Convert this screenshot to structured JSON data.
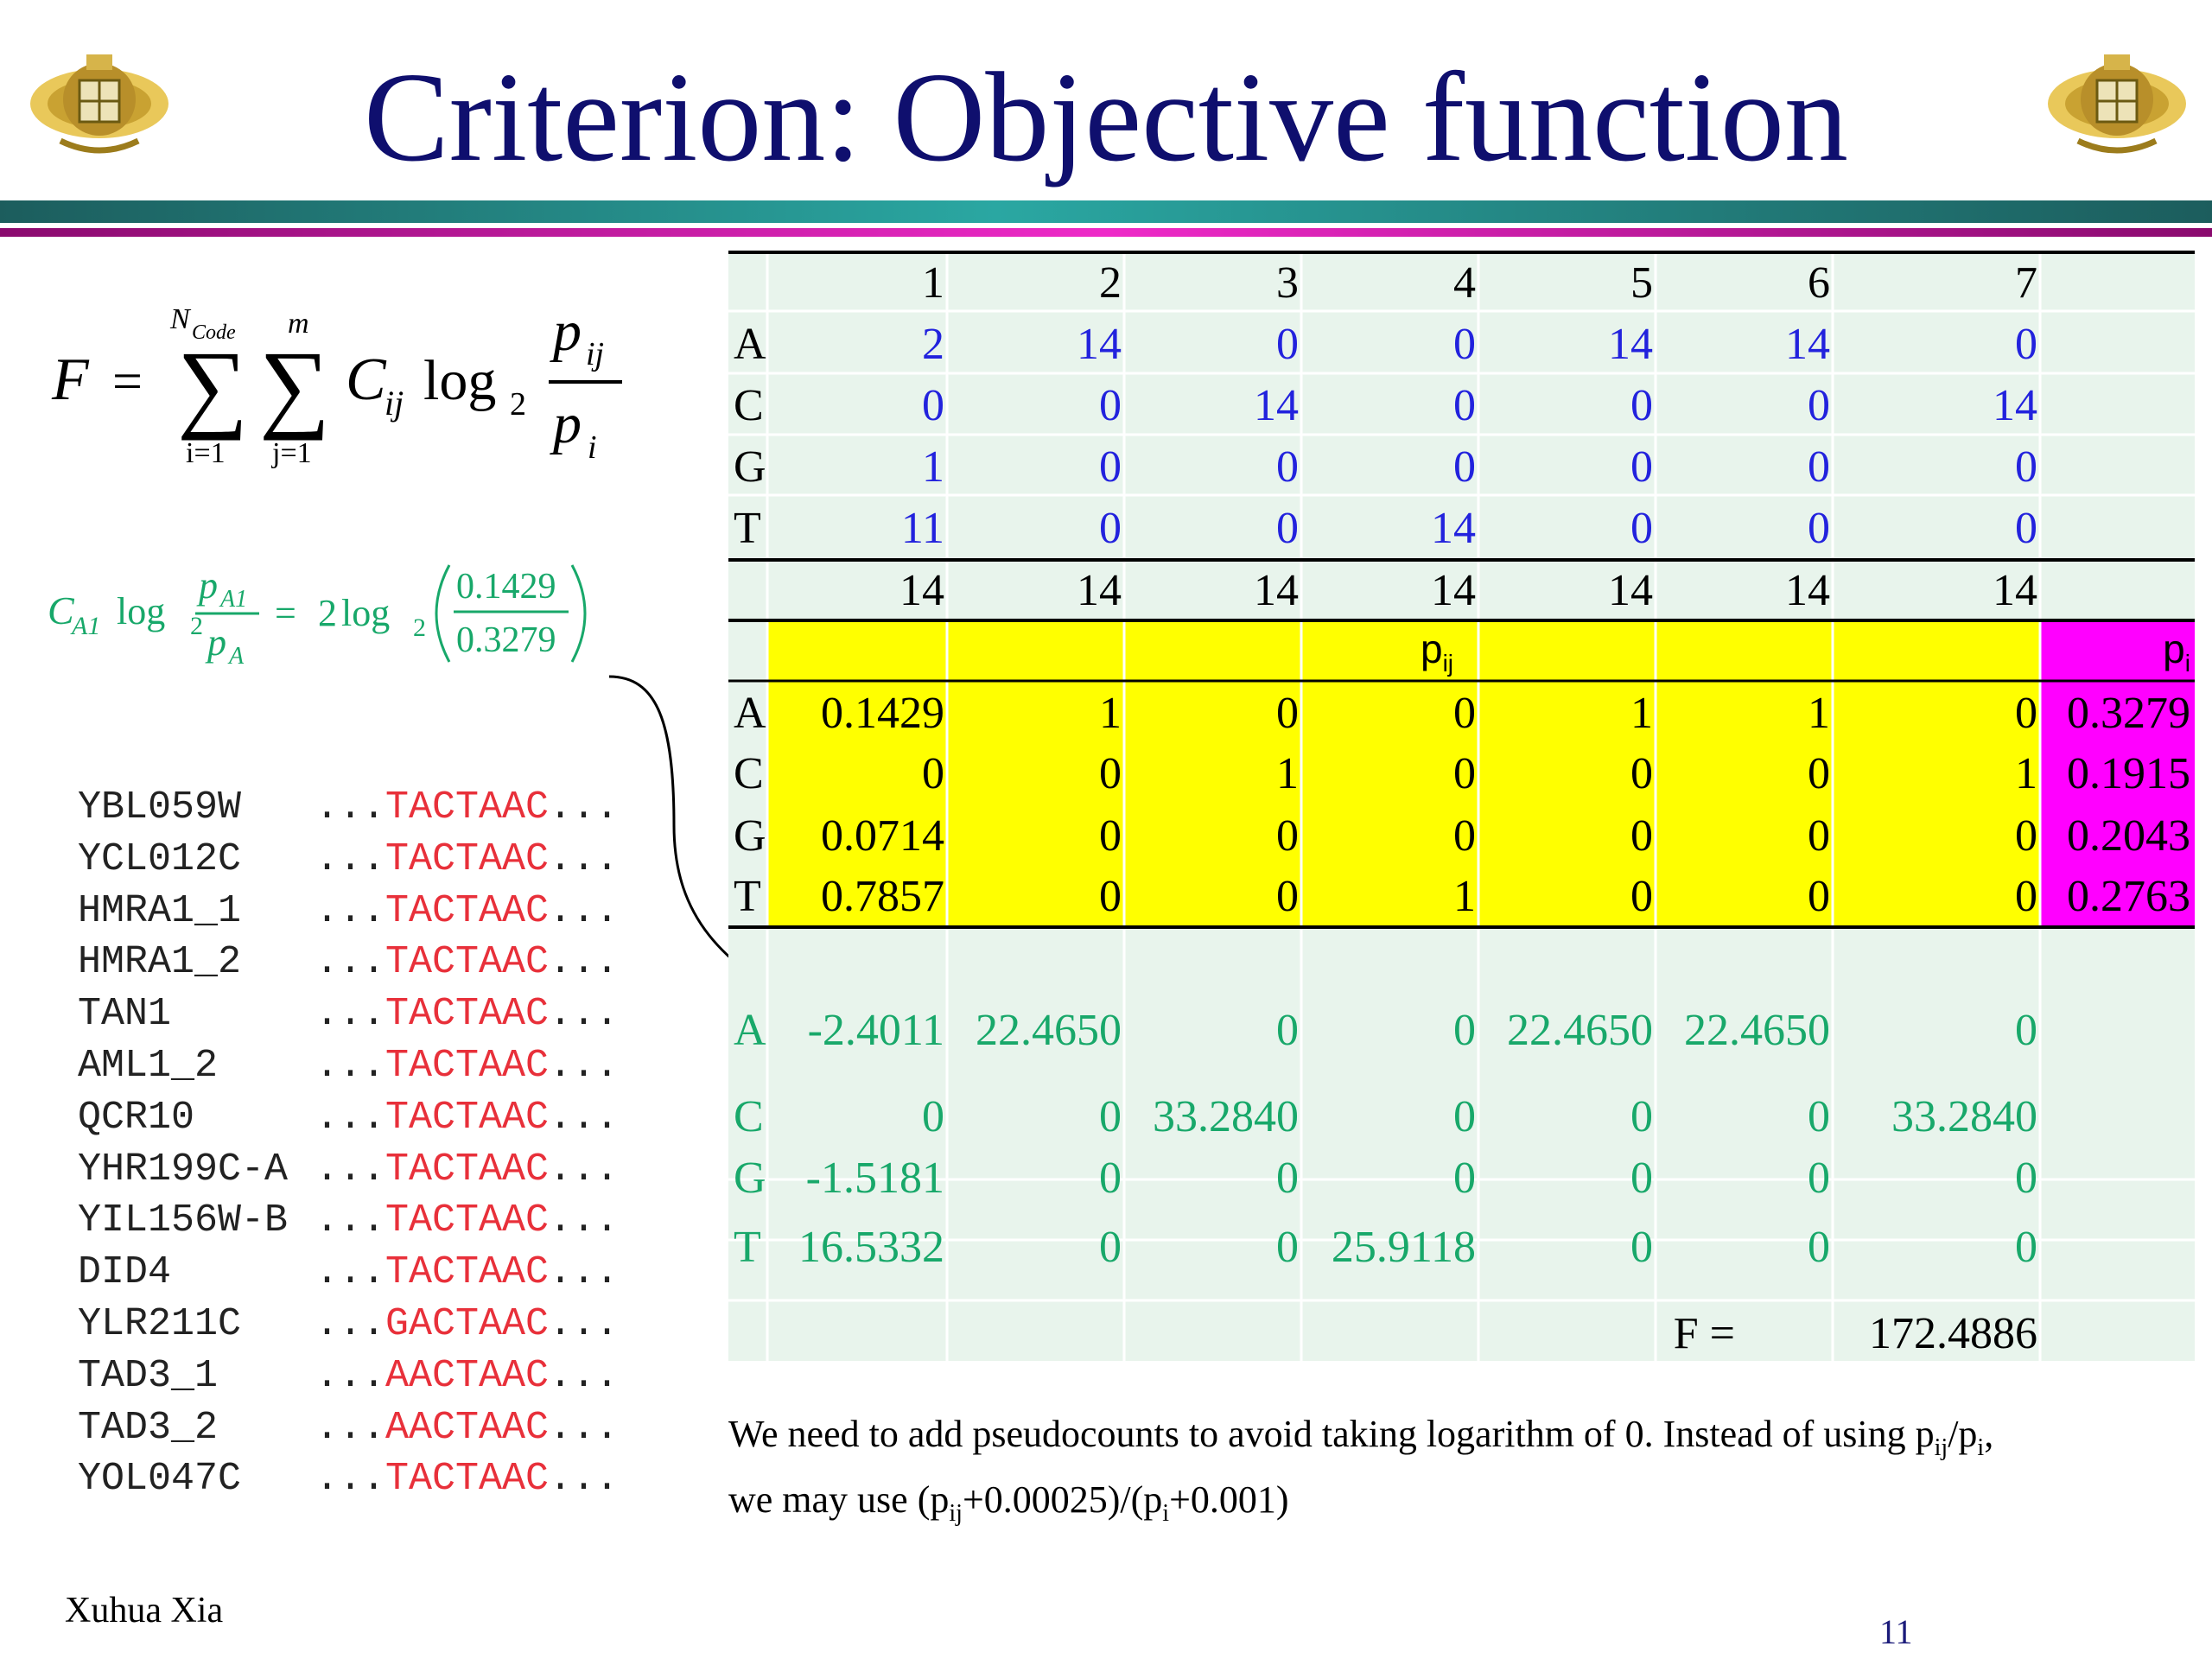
{
  "title": "Criterion: Objective function",
  "formula": {
    "lhs": "F",
    "eq": "=",
    "sum1_upper": "N",
    "sum1_upper_sub": "Code",
    "sum1_lower": "i=1",
    "sum2_upper": "m",
    "sum2_lower": "j=1",
    "term": "C",
    "term_sub": "ij",
    "log": "log",
    "log_base": "2",
    "num": "p",
    "num_sub": "ij",
    "den": "p",
    "den_sub": "i"
  },
  "example": {
    "c": "C",
    "c_sub": "A1",
    "log": "log",
    "log_base": "2",
    "num": "p",
    "num_sub": "A1",
    "den": "p",
    "den_sub": "A",
    "eq": "=",
    "coef": "2",
    "log2": "log",
    "log2_base": "2",
    "val_num": "0.1429",
    "val_den": "0.3279"
  },
  "sequences": [
    {
      "name": "YBL059W",
      "dots_pre": "...",
      "motif": "TACTAAC",
      "dots_post": "..."
    },
    {
      "name": "YCL012C",
      "dots_pre": "...",
      "motif": "TACTAAC",
      "dots_post": "..."
    },
    {
      "name": "HMRA1_1",
      "dots_pre": "...",
      "motif": "TACTAAC",
      "dots_post": "..."
    },
    {
      "name": "HMRA1_2",
      "dots_pre": "...",
      "motif": "TACTAAC",
      "dots_post": "..."
    },
    {
      "name": "TAN1",
      "dots_pre": "...",
      "motif": "TACTAAC",
      "dots_post": "..."
    },
    {
      "name": "AML1_2",
      "dots_pre": "...",
      "motif": "TACTAAC",
      "dots_post": "..."
    },
    {
      "name": "QCR10",
      "dots_pre": "...",
      "motif": "TACTAAC",
      "dots_post": "..."
    },
    {
      "name": "YHR199C-A",
      "dots_pre": "...",
      "motif": "TACTAAC",
      "dots_post": "..."
    },
    {
      "name": "YIL156W-B",
      "dots_pre": "...",
      "motif": "TACTAAC",
      "dots_post": "..."
    },
    {
      "name": "DID4",
      "dots_pre": "...",
      "motif": "TACTAAC",
      "dots_post": "..."
    },
    {
      "name": "YLR211C",
      "dots_pre": "...",
      "motif": "GACTAAC",
      "dots_post": "..."
    },
    {
      "name": "TAD3_1",
      "dots_pre": "...",
      "motif": "AACTAAC",
      "dots_post": "..."
    },
    {
      "name": "TAD3_2",
      "dots_pre": "...",
      "motif": "AACTAAC",
      "dots_post": "..."
    },
    {
      "name": "YOL047C",
      "dots_pre": "...",
      "motif": "TACTAAC",
      "dots_post": "..."
    }
  ],
  "table": {
    "positions": [
      "1",
      "2",
      "3",
      "4",
      "5",
      "6",
      "7"
    ],
    "bases": [
      "A",
      "C",
      "G",
      "T"
    ],
    "counts": [
      [
        "2",
        "14",
        "0",
        "0",
        "14",
        "14",
        "0"
      ],
      [
        "0",
        "0",
        "14",
        "0",
        "0",
        "0",
        "14"
      ],
      [
        "1",
        "0",
        "0",
        "0",
        "0",
        "0",
        "0"
      ],
      [
        "11",
        "0",
        "0",
        "14",
        "0",
        "0",
        "0"
      ]
    ],
    "totals": [
      "14",
      "14",
      "14",
      "14",
      "14",
      "14",
      "14"
    ],
    "pij_label": "p",
    "pij_label_sub": "ij",
    "pi_label": "p",
    "pi_label_sub": "i",
    "pij": [
      [
        "0.1429",
        "1",
        "0",
        "0",
        "1",
        "1",
        "0"
      ],
      [
        "0",
        "0",
        "1",
        "0",
        "0",
        "0",
        "1"
      ],
      [
        "0.0714",
        "0",
        "0",
        "0",
        "0",
        "0",
        "0"
      ],
      [
        "0.7857",
        "0",
        "0",
        "1",
        "0",
        "0",
        "0"
      ]
    ],
    "pi": [
      "0.3279",
      "0.1915",
      "0.2043",
      "0.2763"
    ],
    "contrib": [
      [
        "-2.4011",
        "22.4650",
        "0",
        "0",
        "22.4650",
        "22.4650",
        "0"
      ],
      [
        "0",
        "0",
        "33.2840",
        "0",
        "0",
        "0",
        "33.2840"
      ],
      [
        "-1.5181",
        "0",
        "0",
        "0",
        "0",
        "0",
        "0"
      ],
      [
        "16.5332",
        "0",
        "0",
        "25.9118",
        "0",
        "0",
        "0"
      ]
    ],
    "f_label": "F =",
    "f_value": "172.4886"
  },
  "note": {
    "line1_a": "We need to add pseudocounts to avoid taking logarithm of 0. Instead of using p",
    "line1_sub1": "ij",
    "line1_b": "/p",
    "line1_sub2": "i",
    "line1_c": ",",
    "line2_a": "we may use (p",
    "line2_sub1": "ij",
    "line2_b": "+0.00025)/(p",
    "line2_sub2": "i",
    "line2_c": "+0.001)"
  },
  "author": "Xuhua Xia",
  "page_number": "11",
  "colors": {
    "title": "#0f0f6e",
    "count_blue": "#2222dd",
    "contrib_green": "#18a86a",
    "pij_yellow": "#ffff00",
    "pi_magenta": "#ff00ff",
    "motif_red": "#e8303a",
    "table_bg": "#e8f4ec"
  }
}
